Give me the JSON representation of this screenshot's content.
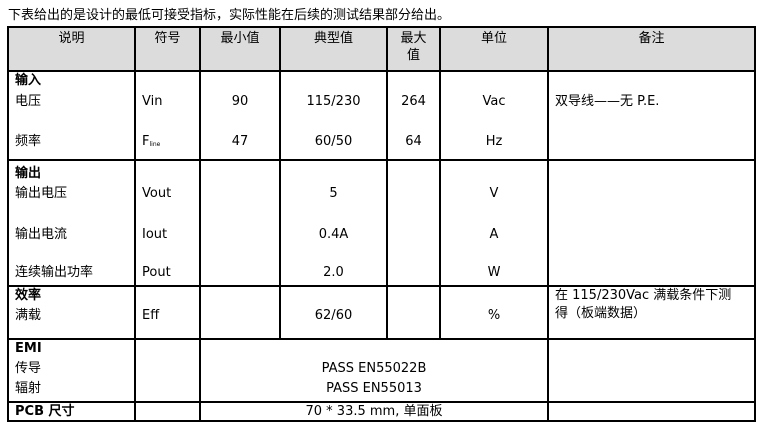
{
  "intro": "下表给出的是设计的最低可接受指标，实际性能在后续的测试结果部分给出。",
  "headers": [
    "说明",
    "符号",
    "最小值",
    "典型值",
    "最大值",
    "单位",
    "备注"
  ],
  "input": {
    "title": "输入",
    "rows": [
      {
        "desc": "电压",
        "symbol": "Vin",
        "min": "90",
        "typ": "115/230",
        "max": "264",
        "unit": "Vac",
        "note": "双导线——无 P.E."
      },
      {
        "desc": "频率",
        "symbol": "F",
        "symbol_sub": "line",
        "min": "47",
        "typ": "60/50",
        "max": "64",
        "unit": "Hz",
        "note": ""
      }
    ]
  },
  "output": {
    "title": "输出",
    "rows": [
      {
        "desc": "输出电压",
        "symbol": "Vout",
        "typ": "5",
        "unit": "V"
      },
      {
        "desc": "输出电流",
        "symbol": "Iout",
        "typ": "0.4A",
        "unit": "A"
      },
      {
        "desc": "连续输出功率",
        "symbol": "Pout",
        "typ": "2.0",
        "unit": "W"
      }
    ]
  },
  "efficiency": {
    "title": "效率",
    "desc": "满载",
    "symbol": "Eff",
    "typ": "62/60",
    "unit": "%",
    "note_line1": "在 115/230Vac 满载条件下测",
    "note_line2": "得（板端数据）"
  },
  "emi": {
    "title": "EMI",
    "rows": [
      {
        "desc": "传导",
        "value": "PASS EN55022B"
      },
      {
        "desc": "辐射",
        "value": "PASS EN55013"
      }
    ]
  },
  "pcb": {
    "title": "PCB 尺寸",
    "value": "70 * 33.5 mm, 单面板"
  }
}
